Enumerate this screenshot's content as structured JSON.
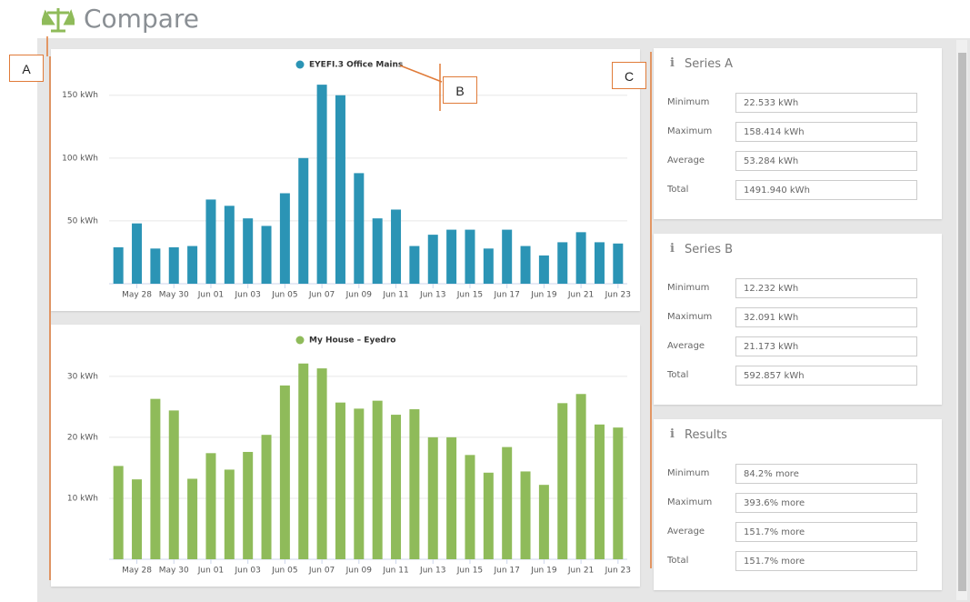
{
  "header": {
    "title": "Compare"
  },
  "chart_data": [
    {
      "type": "bar",
      "legend": "EYEFI.3 Office Mains",
      "color": "#2b94b5",
      "categories": [
        null,
        "May 28",
        null,
        "May 30",
        null,
        "Jun 01",
        null,
        "Jun 03",
        null,
        "Jun 05",
        null,
        "Jun 07",
        null,
        "Jun 09",
        null,
        "Jun 11",
        null,
        "Jun 13",
        null,
        "Jun 15",
        null,
        "Jun 17",
        null,
        "Jun 19",
        null,
        "Jun 21",
        null,
        "Jun 23"
      ],
      "values": [
        29,
        48,
        28,
        29,
        30,
        67,
        62,
        52,
        46,
        72,
        100,
        158.4,
        150,
        88,
        52,
        59,
        30,
        39,
        43,
        43,
        28,
        43,
        30,
        22.5,
        33,
        41,
        33,
        32
      ],
      "ylim": [
        0,
        165
      ],
      "yticks": [
        {
          "value": 50,
          "label": "50 kWh"
        },
        {
          "value": 100,
          "label": "100 kWh"
        },
        {
          "value": 150,
          "label": "150 kWh"
        }
      ],
      "grid": true
    },
    {
      "type": "bar",
      "legend": "My House – Eyedro",
      "color": "#8fbb5a",
      "categories": [
        null,
        "May 28",
        null,
        "May 30",
        null,
        "Jun 01",
        null,
        "Jun 03",
        null,
        "Jun 05",
        null,
        "Jun 07",
        null,
        "Jun 09",
        null,
        "Jun 11",
        null,
        "Jun 13",
        null,
        "Jun 15",
        null,
        "Jun 17",
        null,
        "Jun 19",
        null,
        "Jun 21",
        null,
        "Jun 23"
      ],
      "values": [
        15.3,
        13.1,
        26.3,
        24.4,
        13.2,
        17.4,
        14.7,
        17.6,
        20.4,
        28.5,
        32.1,
        31.3,
        25.7,
        24.7,
        26.0,
        23.7,
        24.6,
        20.0,
        20.0,
        17.1,
        14.2,
        18.4,
        14.4,
        12.2,
        25.6,
        27.1,
        22.1,
        21.6
      ],
      "ylim": [
        0,
        34
      ],
      "yticks": [
        {
          "value": 10,
          "label": "10 kWh"
        },
        {
          "value": 20,
          "label": "20 kWh"
        },
        {
          "value": 30,
          "label": "30 kWh"
        }
      ],
      "grid": true
    }
  ],
  "panels": [
    {
      "title": "Series A",
      "rows": [
        {
          "label": "Minimum",
          "value": "22.533 kWh"
        },
        {
          "label": "Maximum",
          "value": "158.414 kWh"
        },
        {
          "label": "Average",
          "value": "53.284 kWh"
        },
        {
          "label": "Total",
          "value": "1491.940 kWh"
        }
      ]
    },
    {
      "title": "Series B",
      "rows": [
        {
          "label": "Minimum",
          "value": "12.232 kWh"
        },
        {
          "label": "Maximum",
          "value": "32.091 kWh"
        },
        {
          "label": "Average",
          "value": "21.173 kWh"
        },
        {
          "label": "Total",
          "value": "592.857 kWh"
        }
      ]
    },
    {
      "title": "Results",
      "rows": [
        {
          "label": "Minimum",
          "value": "84.2% more"
        },
        {
          "label": "Maximum",
          "value": "393.6% more"
        },
        {
          "label": "Average",
          "value": "151.7% more"
        },
        {
          "label": "Total",
          "value": "151.7% more"
        }
      ]
    }
  ],
  "annotations": [
    "A",
    "B",
    "C"
  ]
}
